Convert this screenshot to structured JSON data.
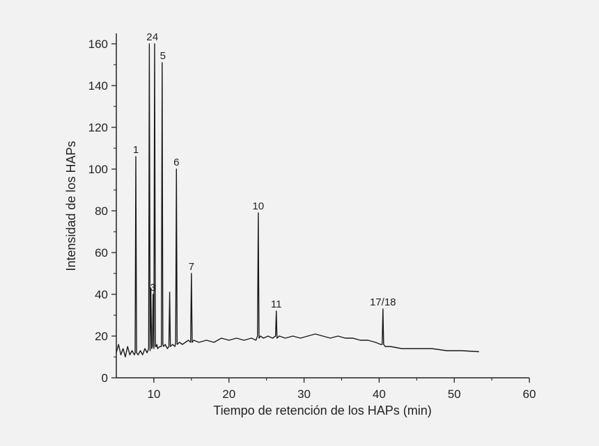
{
  "chart_data": {
    "type": "line",
    "title": "",
    "xlabel": "Tiempo de retención de los HAPs (min)",
    "ylabel": "Intensidad de los HAPs",
    "xlim": [
      5,
      60
    ],
    "ylim": [
      0,
      165
    ],
    "x_ticks": [
      10,
      20,
      30,
      40,
      50,
      60
    ],
    "y_ticks": [
      0,
      20,
      40,
      60,
      80,
      100,
      120,
      140,
      160
    ],
    "grid": false,
    "colors": {
      "background": "#f2f2f2",
      "line": "#1a1a1a",
      "axis": "#222222"
    },
    "series": [
      {
        "x": [
          5.0,
          5.3,
          5.6,
          5.9,
          6.2,
          6.5,
          6.8,
          7.1,
          7.4,
          7.5,
          7.6,
          7.7,
          7.9,
          8.2,
          8.5,
          8.8,
          9.1,
          9.3,
          9.4,
          9.5,
          9.6,
          9.7,
          9.8,
          9.9,
          10.0,
          10.1,
          10.2,
          10.3,
          10.4,
          10.5,
          10.8,
          11.0,
          11.1,
          11.2,
          11.3,
          11.5,
          11.8,
          12.0,
          12.1,
          12.2,
          12.5,
          12.8,
          12.9,
          13.0,
          13.1,
          13.4,
          13.8,
          14.2,
          14.6,
          14.9,
          15.0,
          15.1,
          15.3,
          16,
          17,
          18,
          19,
          20,
          21,
          22,
          23,
          23.6,
          23.8,
          23.9,
          24.0,
          24.2,
          24.6,
          25.2,
          25.8,
          26.2,
          26.3,
          26.4,
          26.7,
          27.5,
          28.5,
          29.5,
          30.5,
          31.5,
          32.5,
          33.5,
          34.5,
          35.5,
          36.5,
          37.5,
          38.5,
          39.5,
          40.2,
          40.4,
          40.5,
          40.6,
          40.8,
          41.5,
          43,
          45,
          47,
          49,
          51,
          53.3
        ],
        "y": [
          12,
          16,
          11,
          14,
          10,
          15,
          11,
          13,
          11,
          12,
          106,
          12,
          11,
          13,
          11,
          14,
          12,
          14,
          160,
          13,
          43,
          14,
          15,
          40,
          14,
          160,
          15,
          15,
          16,
          14,
          15,
          15,
          151,
          16,
          15,
          16,
          14,
          15,
          41,
          15,
          16,
          15,
          17,
          100,
          16,
          17,
          16,
          17,
          18,
          17,
          50,
          17,
          18,
          17,
          18,
          17,
          19,
          18,
          19,
          18,
          19,
          18,
          20,
          79,
          19,
          20,
          19,
          20,
          19,
          20,
          32,
          19,
          20,
          19,
          20,
          19,
          20,
          21,
          20,
          19,
          20,
          19,
          19,
          18,
          18,
          17,
          16,
          16,
          33,
          16,
          15,
          15,
          14,
          14,
          14,
          13,
          13,
          12.5
        ]
      }
    ],
    "annotations": [
      {
        "label": "1",
        "x": 7.6,
        "y": 106
      },
      {
        "label": "2",
        "x": 9.4,
        "y": 160
      },
      {
        "label": "3",
        "x": 9.9,
        "y": 40
      },
      {
        "label": "4",
        "x": 10.2,
        "y": 160
      },
      {
        "label": "5",
        "x": 11.2,
        "y": 151
      },
      {
        "label": "6",
        "x": 13.0,
        "y": 100
      },
      {
        "label": "7",
        "x": 15.0,
        "y": 50
      },
      {
        "label": "10",
        "x": 23.9,
        "y": 79
      },
      {
        "label": "11",
        "x": 26.3,
        "y": 32
      },
      {
        "label": "17/18",
        "x": 40.5,
        "y": 33
      }
    ]
  }
}
